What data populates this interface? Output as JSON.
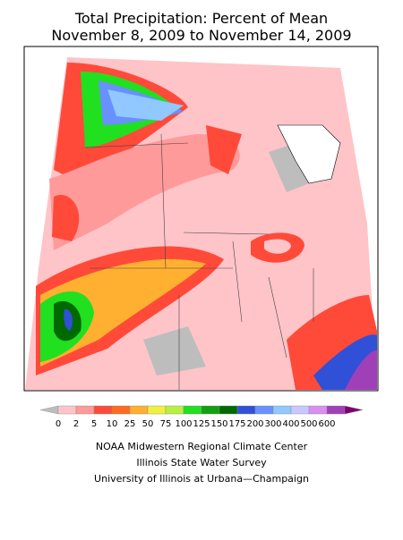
{
  "title": "Total Precipitation: Percent of Mean",
  "subtitle": "November 8, 2009 to November 14, 2009",
  "legend": {
    "bins": [
      0,
      2,
      5,
      10,
      25,
      50,
      75,
      100,
      125,
      150,
      175,
      200,
      300,
      400,
      500,
      600
    ],
    "colors": [
      "#bdbdbd",
      "#ffc4c8",
      "#ff9a9a",
      "#ff4a3a",
      "#ff6a20",
      "#ffb030",
      "#f0f040",
      "#b8f040",
      "#20e020",
      "#10a010",
      "#006a00",
      "#3050d8",
      "#6890ff",
      "#90c8ff",
      "#c8c8ff",
      "#d890f0",
      "#a040b8",
      "#800070"
    ]
  },
  "credits": [
    "NOAA Midwestern Regional Climate Center",
    "Illinois State Water Survey",
    "University of Illinois at Urbana—Champaign"
  ]
}
